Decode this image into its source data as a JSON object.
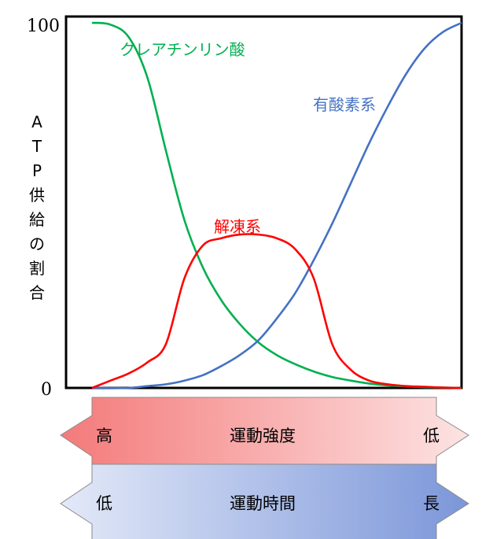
{
  "chart_data": {
    "type": "line",
    "ylabel": "ATP供給の割合",
    "ylim": [
      0,
      100
    ],
    "y_ticks": [
      "100",
      "0"
    ],
    "x": [
      0,
      5,
      10,
      15,
      20,
      25,
      30,
      35,
      40,
      45,
      50,
      55,
      60,
      65,
      70,
      75,
      80,
      85,
      90,
      95,
      100
    ],
    "series": [
      {
        "name": "クレアチンリン酸",
        "color": "#00b050",
        "values": [
          100,
          99.5,
          96,
          85,
          65,
          46,
          33,
          24,
          17.5,
          12.5,
          9,
          6.5,
          4.5,
          3,
          2,
          1.2,
          0.7,
          0.4,
          0.2,
          0.1,
          0
        ]
      },
      {
        "name": "有酸素系",
        "color": "#4472c4",
        "values": [
          0,
          0,
          0,
          0.5,
          1,
          2,
          3.5,
          6,
          9,
          13,
          19,
          26,
          35,
          45,
          56,
          67,
          77,
          86,
          93,
          97.5,
          100
        ]
      },
      {
        "name": "解凍系",
        "color": "#ff0000",
        "values": [
          0,
          2,
          4,
          7,
          12,
          30,
          39,
          41,
          42,
          42,
          41,
          38,
          30,
          12,
          5,
          2,
          1,
          0.5,
          0.3,
          0.1,
          0
        ]
      }
    ],
    "grid": false,
    "legend": "inline"
  },
  "arrows": [
    {
      "left": "高",
      "center": "運動強度",
      "right": "低",
      "direction": "left",
      "color_strong": "#f47a7a",
      "color_light": "#fde3e3"
    },
    {
      "left": "低",
      "center": "運動時間",
      "right": "長",
      "direction": "right",
      "color_strong": "#7b96d9",
      "color_light": "#e3e9f8"
    }
  ]
}
